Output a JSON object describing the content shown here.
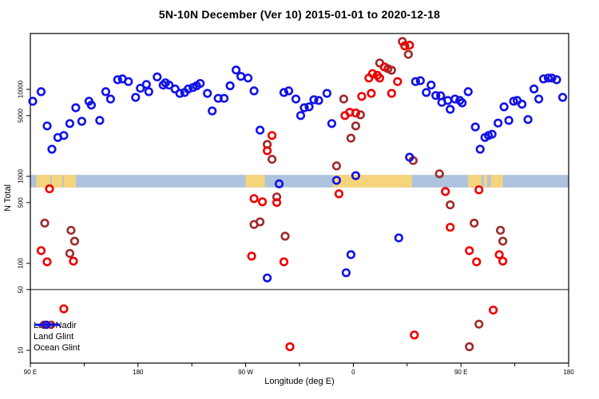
{
  "title": "5N-10N December (Ver 10)   2015-01-01 to 2020-12-18",
  "axes": {
    "x": {
      "label": "Longitude (deg E)",
      "ticks": [
        {
          "deg": 0,
          "label": "90 E"
        },
        {
          "deg": 90,
          "label": "180"
        },
        {
          "deg": 180,
          "label": "90 W"
        },
        {
          "deg": 270,
          "label": "0"
        },
        {
          "deg": 360,
          "label": "90 E"
        },
        {
          "deg": 450,
          "label": "180"
        }
      ],
      "minor_tick_degs": [
        45,
        135,
        225,
        315,
        405
      ],
      "range_deg": [
        0,
        450
      ],
      "note": "axis wraps eastward starting at 90E"
    },
    "y": {
      "label": "N Total",
      "scale": "log10",
      "ticks": [
        {
          "value": 10,
          "label": "10"
        },
        {
          "value": 50,
          "label": "50"
        },
        {
          "value": 100,
          "label": "100"
        },
        {
          "value": 500,
          "label": "500"
        },
        {
          "value": 1000,
          "label": "1000"
        },
        {
          "value": 5000,
          "label": "5000"
        },
        {
          "value": 10000,
          "label": "10000"
        }
      ],
      "range": [
        7,
        45000
      ]
    }
  },
  "map_band": {
    "description": "5N-10N latitude strip: ocean blue with land patches",
    "ocean_color": "#AEC3DE",
    "land_color": "#F6D47C",
    "value_range": [
      745,
      1040
    ],
    "land_segments_deg": [
      [
        5,
        17
      ],
      [
        18,
        27
      ],
      [
        28,
        38
      ],
      [
        180,
        196
      ],
      [
        253,
        319
      ],
      [
        366,
        377
      ],
      [
        379,
        382
      ],
      [
        385,
        395
      ]
    ]
  },
  "threshold_line": {
    "value": 50,
    "color": "#555555"
  },
  "legend": {
    "items": [
      {
        "label": "Land Nadir",
        "series": "land_nadir",
        "marker": "line-two-circles"
      },
      {
        "label": "Land Glint",
        "series": "land_glint",
        "marker": "line-circle"
      },
      {
        "label": "Ocean Glint",
        "series": "ocean_glint",
        "marker": "line-circle"
      }
    ]
  },
  "colors": {
    "land_nadir": "#9E2B2B",
    "land_glint": "#EE0000",
    "ocean_glint": "#1212E8",
    "axis": "#000000"
  },
  "chart_data": {
    "type": "scatter",
    "title": "5N-10N December (Ver 10)   2015-01-01 to 2020-12-18",
    "xlabel": "Longitude (deg E)",
    "ylabel": "N Total",
    "x_unit": "degrees eastward along axis from 90E (0..450)",
    "ylim": [
      7,
      45000
    ],
    "grid": false,
    "legend_position": "bottom-left",
    "series": [
      {
        "name": "Land Nadir",
        "key": "land_nadir",
        "color": "#9E2B2B",
        "points": [
          [
            12,
            290
          ],
          [
            34,
            240
          ],
          [
            37,
            180
          ],
          [
            33,
            130
          ],
          [
            198,
            2330
          ],
          [
            202,
            1570
          ],
          [
            206,
            580
          ],
          [
            187,
            280
          ],
          [
            192,
            300
          ],
          [
            213,
            205
          ],
          [
            256,
            1320
          ],
          [
            262,
            7750
          ],
          [
            268,
            2750
          ],
          [
            272,
            3800
          ],
          [
            276,
            5100
          ],
          [
            292,
            20100
          ],
          [
            299,
            17300
          ],
          [
            302,
            16600
          ],
          [
            311,
            35500
          ],
          [
            316,
            25300
          ],
          [
            320,
            1520
          ],
          [
            342,
            1070
          ],
          [
            351,
            470
          ],
          [
            371,
            290
          ],
          [
            393,
            240
          ],
          [
            395,
            180
          ],
          [
            375,
            20
          ],
          [
            367,
            11
          ]
        ]
      },
      {
        "name": "Land Glint",
        "key": "land_glint",
        "color": "#EE0000",
        "points": [
          [
            16,
            720
          ],
          [
            9,
            140
          ],
          [
            14,
            104
          ],
          [
            36,
            106
          ],
          [
            28,
            30
          ],
          [
            202,
            2950
          ],
          [
            198,
            1970
          ],
          [
            187,
            555
          ],
          [
            194,
            510
          ],
          [
            206,
            500
          ],
          [
            185,
            121
          ],
          [
            212,
            104
          ],
          [
            217,
            11
          ],
          [
            258,
            630
          ],
          [
            263,
            5000
          ],
          [
            267,
            5450
          ],
          [
            272,
            5350
          ],
          [
            277,
            8300
          ],
          [
            283,
            13500
          ],
          [
            285,
            9000
          ],
          [
            286,
            15200
          ],
          [
            290,
            14500
          ],
          [
            292,
            13500
          ],
          [
            296,
            18100
          ],
          [
            302,
            9000
          ],
          [
            307,
            12300
          ],
          [
            313,
            31600
          ],
          [
            317,
            32200
          ],
          [
            321,
            15
          ],
          [
            347,
            670
          ],
          [
            375,
            700
          ],
          [
            351,
            260
          ],
          [
            367,
            140
          ],
          [
            373,
            104
          ],
          [
            392,
            126
          ],
          [
            395,
            106
          ],
          [
            387,
            29
          ]
        ]
      },
      {
        "name": "Ocean Glint",
        "key": "ocean_glint",
        "color": "#1212E8",
        "points": [
          [
            2,
            7300
          ],
          [
            9,
            9400
          ],
          [
            14,
            3800
          ],
          [
            18,
            2050
          ],
          [
            23,
            2800
          ],
          [
            28,
            2950
          ],
          [
            33,
            4050
          ],
          [
            38,
            6150
          ],
          [
            43,
            4300
          ],
          [
            49,
            7300
          ],
          [
            51,
            6600
          ],
          [
            58,
            4400
          ],
          [
            63,
            9400
          ],
          [
            67,
            7750
          ],
          [
            73,
            12900
          ],
          [
            77,
            13200
          ],
          [
            82,
            12300
          ],
          [
            88,
            8100
          ],
          [
            92,
            10300
          ],
          [
            97,
            11400
          ],
          [
            99,
            9400
          ],
          [
            106,
            13900
          ],
          [
            111,
            11200
          ],
          [
            113,
            11900
          ],
          [
            116,
            11200
          ],
          [
            121,
            10100
          ],
          [
            125,
            9000
          ],
          [
            129,
            9200
          ],
          [
            132,
            10100
          ],
          [
            136,
            10500
          ],
          [
            139,
            11000
          ],
          [
            142,
            11700
          ],
          [
            148,
            9000
          ],
          [
            152,
            5650
          ],
          [
            157,
            7900
          ],
          [
            162,
            7900
          ],
          [
            167,
            11000
          ],
          [
            172,
            16700
          ],
          [
            176,
            14100
          ],
          [
            182,
            13500
          ],
          [
            187,
            9600
          ],
          [
            192,
            3400
          ],
          [
            198,
            68
          ],
          [
            208,
            820
          ],
          [
            212,
            9200
          ],
          [
            216,
            9600
          ],
          [
            222,
            7750
          ],
          [
            226,
            5000
          ],
          [
            229,
            6150
          ],
          [
            233,
            6300
          ],
          [
            237,
            7600
          ],
          [
            241,
            7450
          ],
          [
            248,
            9000
          ],
          [
            252,
            4050
          ],
          [
            256,
            900
          ],
          [
            264,
            78
          ],
          [
            268,
            126
          ],
          [
            272,
            1020
          ],
          [
            308,
            196
          ],
          [
            317,
            1660
          ],
          [
            322,
            12300
          ],
          [
            326,
            12600
          ],
          [
            331,
            9200
          ],
          [
            335,
            11200
          ],
          [
            339,
            8500
          ],
          [
            343,
            8450
          ],
          [
            344,
            7100
          ],
          [
            349,
            7450
          ],
          [
            351,
            5900
          ],
          [
            355,
            7750
          ],
          [
            359,
            7450
          ],
          [
            361,
            7000
          ],
          [
            366,
            9400
          ],
          [
            372,
            3700
          ],
          [
            376,
            2050
          ],
          [
            380,
            2800
          ],
          [
            383,
            2950
          ],
          [
            386,
            3050
          ],
          [
            391,
            4100
          ],
          [
            396,
            6300
          ],
          [
            400,
            4400
          ],
          [
            404,
            7300
          ],
          [
            407,
            7450
          ],
          [
            411,
            6750
          ],
          [
            416,
            4500
          ],
          [
            421,
            10100
          ],
          [
            425,
            7750
          ],
          [
            429,
            13200
          ],
          [
            433,
            13500
          ],
          [
            436,
            13500
          ],
          [
            440,
            12900
          ],
          [
            445,
            8100
          ]
        ]
      }
    ]
  }
}
